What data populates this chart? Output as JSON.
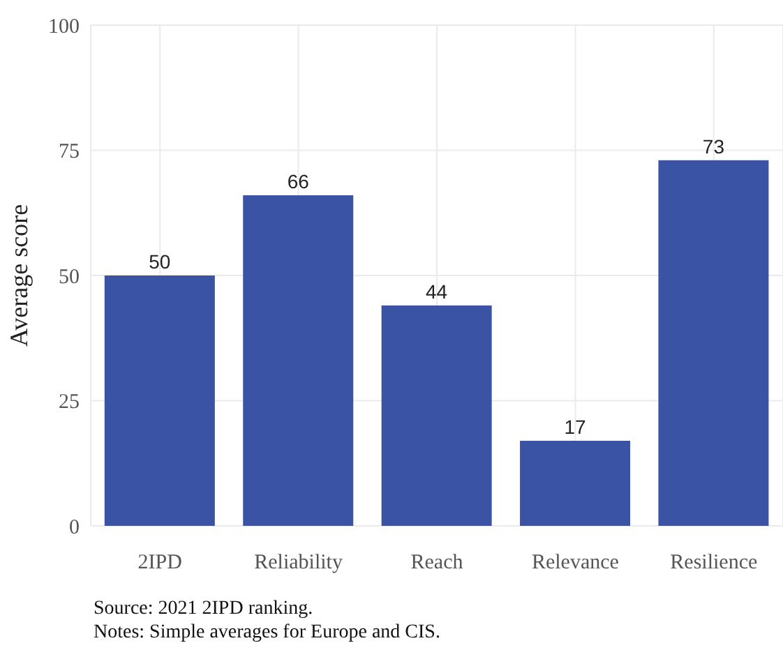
{
  "chart_data": {
    "type": "bar",
    "ylabel": "Average score",
    "categories": [
      "2IPD",
      "Reliability",
      "Reach",
      "Relevance",
      "Resilience"
    ],
    "values": [
      50,
      66,
      44,
      17,
      73
    ],
    "color": "#3a53a4",
    "ylim": [
      0,
      100
    ],
    "yticks": [
      0,
      25,
      50,
      75,
      100
    ],
    "grid": true,
    "data_labels": true,
    "annotations": [
      "Source: 2021 2IPD ranking.",
      "Notes: Simple averages for Europe and CIS."
    ]
  }
}
